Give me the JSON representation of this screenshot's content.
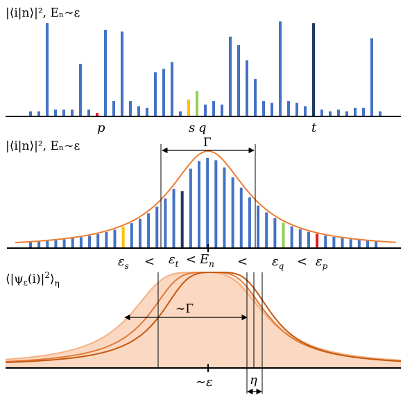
{
  "colors": {
    "bar": "#4472c4",
    "bar_dark": "#1f3864",
    "highlight_red": "#e31a1c",
    "highlight_yellow": "#ffc000",
    "highlight_green": "#92d050",
    "envelope": "#ed7d31",
    "fill": "#f8cbad",
    "curve_light": "#f4b183",
    "curve_mid": "#e07b39",
    "curve_dark": "#c55a11",
    "axis": "#000000"
  },
  "panel1": {
    "title": "|⟨i|n⟩|², Eₙ∼ε",
    "labels": {
      "p": "p",
      "s": "s",
      "q": "q",
      "t": "t"
    },
    "bars": [
      3,
      3,
      55,
      4,
      4,
      4,
      31,
      4,
      2,
      51,
      9,
      50,
      9,
      6,
      5,
      26,
      28,
      32,
      3,
      10,
      15,
      7,
      9,
      7,
      47,
      42,
      33,
      22,
      9,
      8,
      56,
      9,
      8,
      6,
      55,
      4,
      3,
      4,
      3,
      5,
      5,
      46,
      3
    ]
  },
  "panel2": {
    "title": "|⟨i|n⟩|², Eₙ∼ε",
    "width_label": "Γ",
    "order_labels": {
      "eps_s": "εs",
      "lt1": "<",
      "eps_t": "εt",
      "lt2": "<",
      "En": "En",
      "lt3": "<",
      "eps_q": "εq",
      "lt4": "<",
      "eps_p": "εp"
    }
  },
  "panel3": {
    "title": "⟨|ψε(i)|²⟩η",
    "width_label": "∼Γ",
    "center_label": "∼ε",
    "eta_label": "η"
  }
}
